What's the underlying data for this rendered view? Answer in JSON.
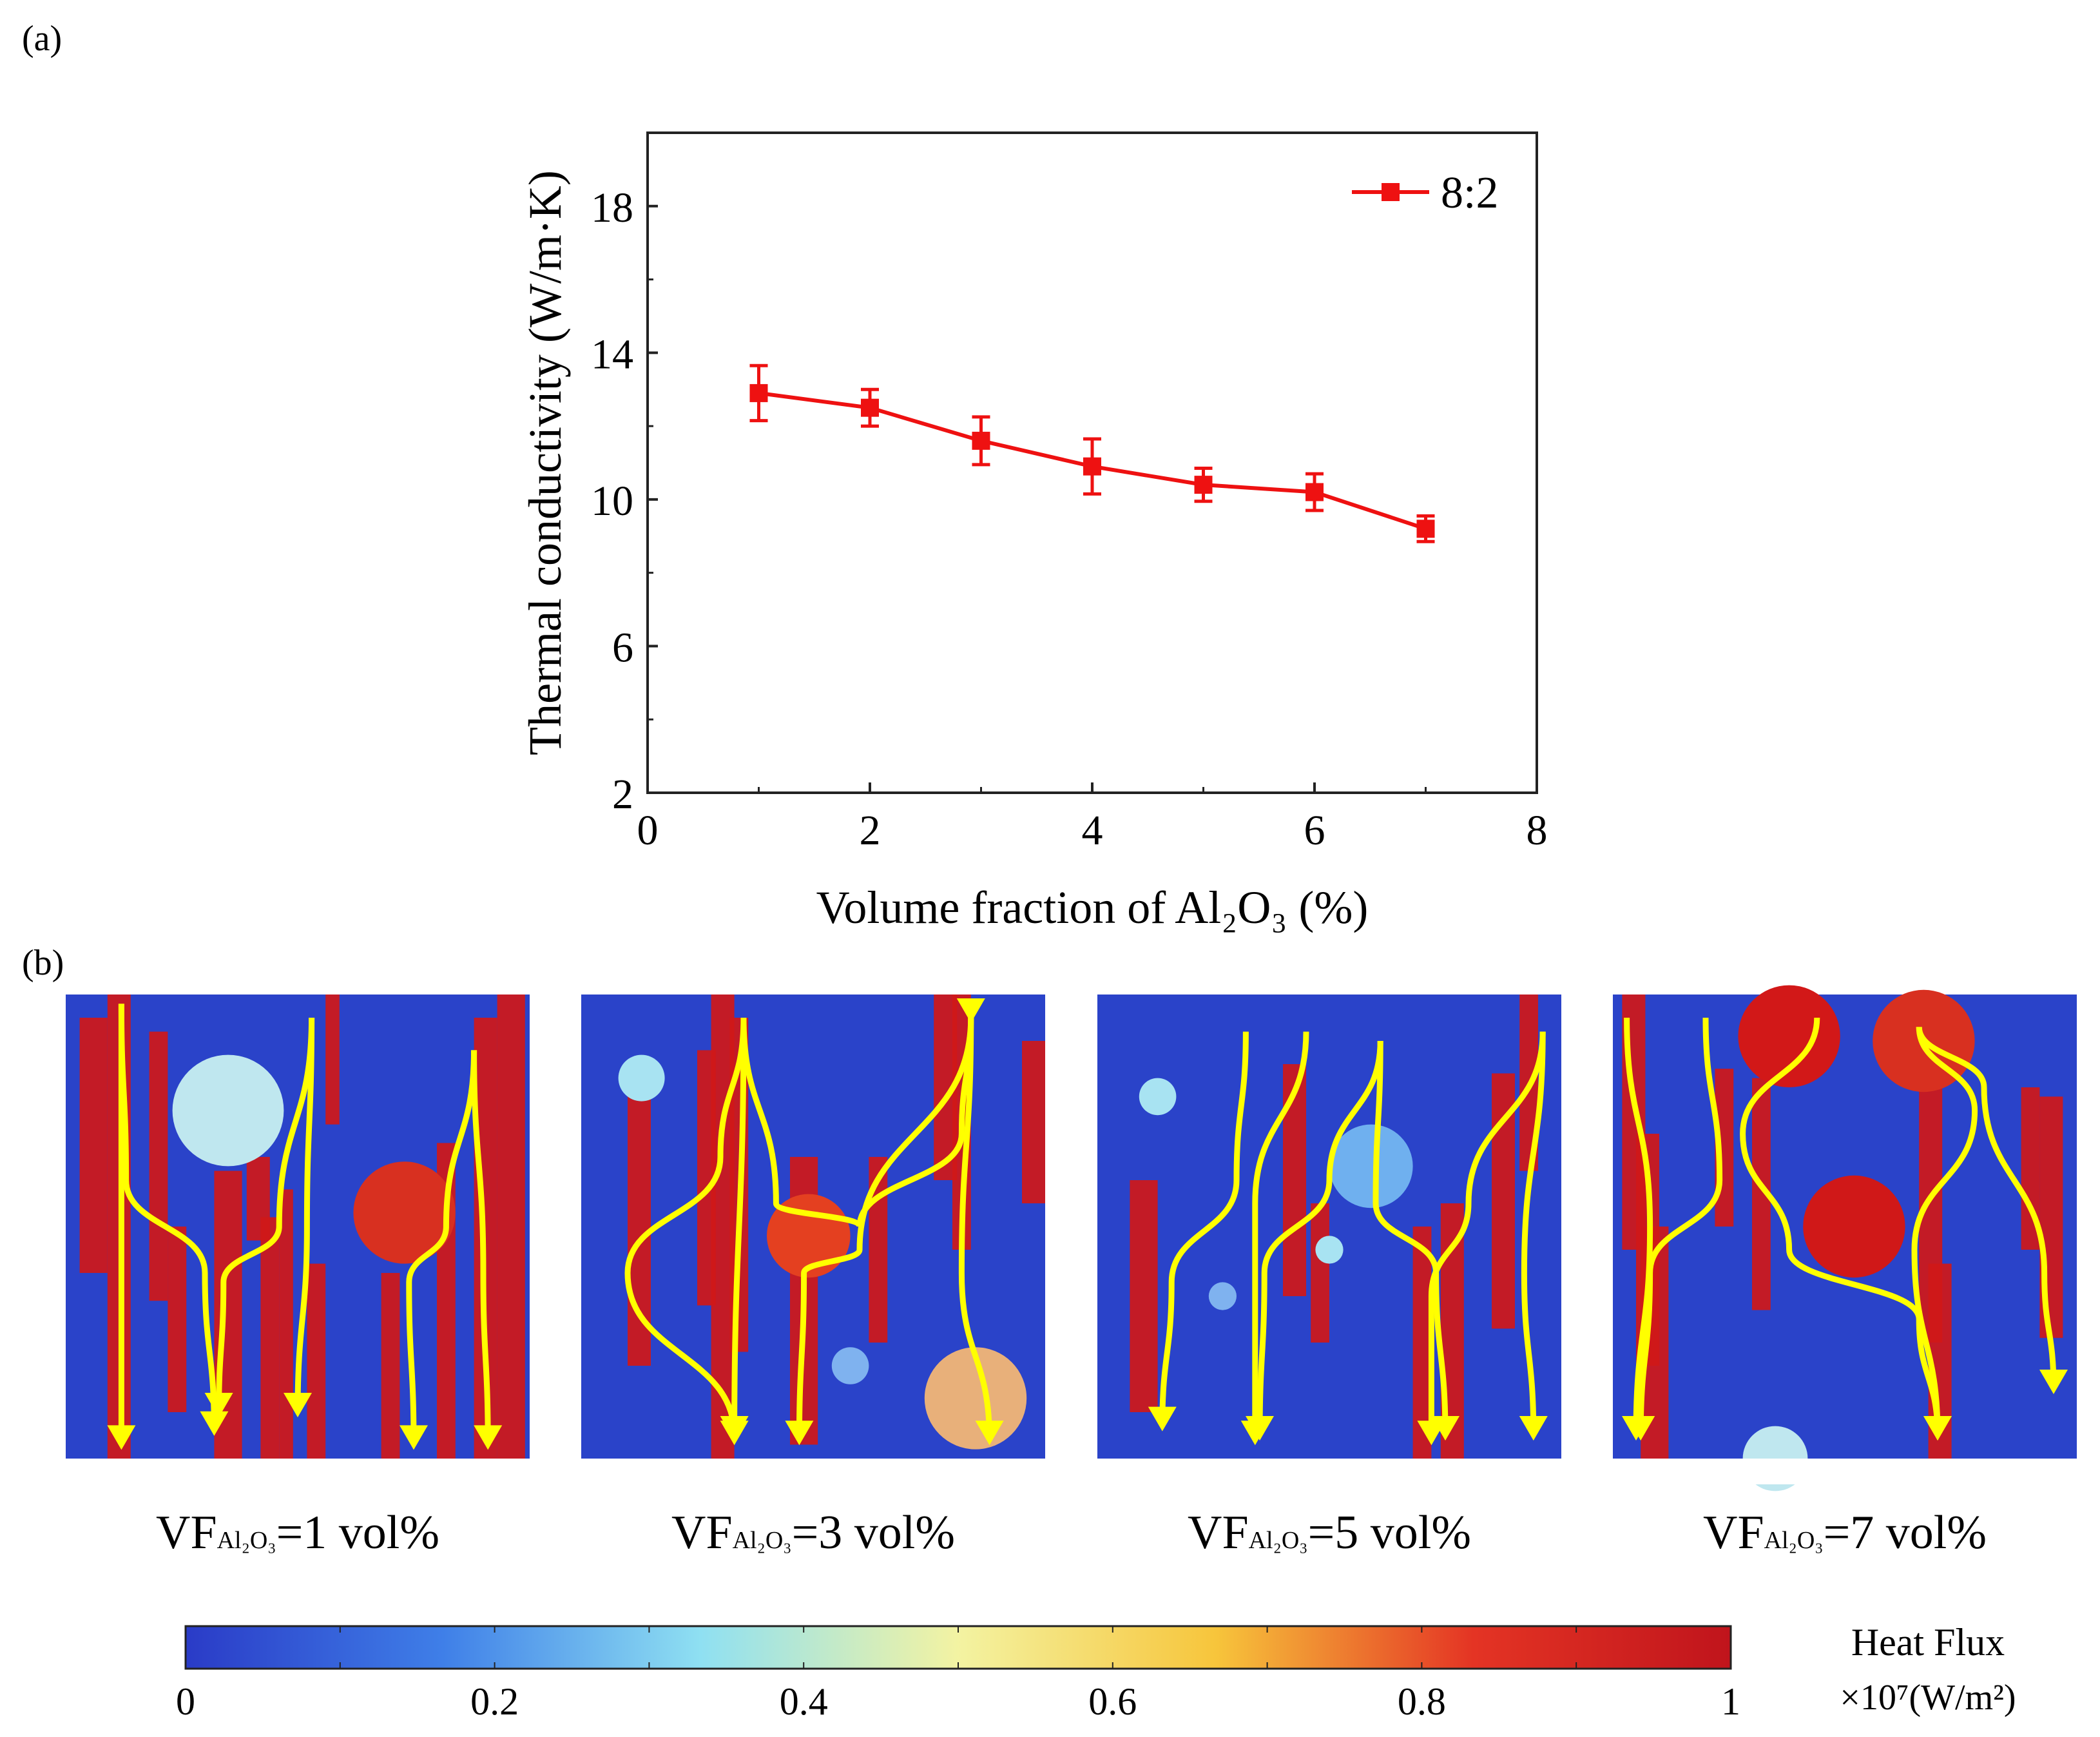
{
  "panel_a": {
    "label": "(a)"
  },
  "panel_b": {
    "label": "(b)",
    "captions": [
      {
        "prefix": "VF",
        "subscript": "Al₂O₃",
        "suffix": "=1 vol%"
      },
      {
        "prefix": "VF",
        "subscript": "Al₂O₃",
        "suffix": "=3 vol%"
      },
      {
        "prefix": "VF",
        "subscript": "Al₂O₃",
        "suffix": "=5 vol%"
      },
      {
        "prefix": "VF",
        "subscript": "Al₂O₃",
        "suffix": "=7 vol%"
      }
    ],
    "volume_fractions": [
      1,
      3,
      5,
      7
    ]
  },
  "colorbar": {
    "ticks": [
      "0",
      "0.2",
      "0.4",
      "0.6",
      "0.8",
      "1"
    ],
    "title": "Heat Flux",
    "unit": "×10⁷(W/m²)",
    "stops": [
      "#2a3bc7",
      "#3f7fe8",
      "#8fe0f2",
      "#f3f3a2",
      "#f7c53b",
      "#e43424",
      "#c0141c"
    ]
  },
  "colors": {
    "series": "#ee1111",
    "arrow": "#ffff00",
    "background_field": "#2a43c9",
    "hot": "#d01818"
  },
  "chart_data": {
    "type": "line",
    "xlabel": "Volume fraction of Al₂O₃ (%)",
    "ylabel": "Thermal conductivity (W/m·K)",
    "xlim": [
      0,
      8
    ],
    "ylim": [
      2,
      20
    ],
    "xticks": [
      0,
      2,
      4,
      6,
      8
    ],
    "yticks": [
      2,
      6,
      10,
      14,
      18
    ],
    "legend_position": "top-right",
    "grid": false,
    "series": [
      {
        "name": "8:2",
        "x": [
          1,
          2,
          3,
          4,
          5,
          6,
          7
        ],
        "y": [
          12.9,
          12.5,
          11.6,
          10.9,
          10.4,
          10.2,
          9.2
        ],
        "error": [
          0.75,
          0.5,
          0.65,
          0.75,
          0.45,
          0.5,
          0.35
        ]
      }
    ]
  }
}
